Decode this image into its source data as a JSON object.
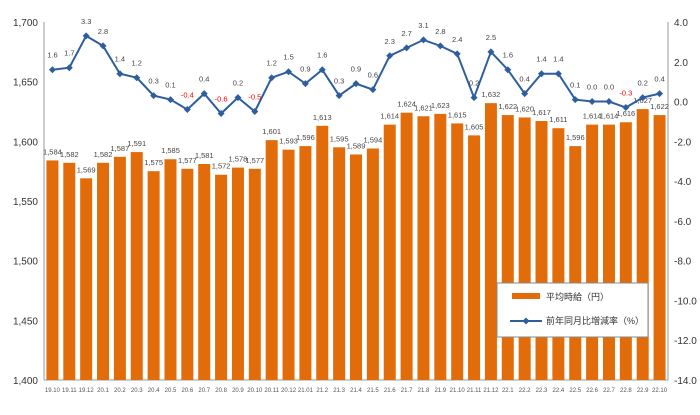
{
  "chart_data": {
    "type": "bar+line",
    "categories": [
      "19.10",
      "19.11",
      "19.12",
      "20.1",
      "20.2",
      "20.3",
      "20.4",
      "20.5",
      "20.6",
      "20.7",
      "20.8",
      "20.9",
      "20.10",
      "20.11",
      "20.12",
      "21.01",
      "21.2",
      "21.3",
      "21.4",
      "21.5",
      "21.6",
      "21.7",
      "21.8",
      "21.9",
      "21.10",
      "21.11",
      "21.12",
      "22.1",
      "22.2",
      "22.3",
      "22.4",
      "22.5",
      "22.6",
      "22.7",
      "22.8",
      "22.9",
      "22.10"
    ],
    "series": [
      {
        "name": "平均時給（円）",
        "type": "bar",
        "axis": "left",
        "color": "#E36C0A",
        "values": [
          1584,
          1582,
          1569,
          1582,
          1587,
          1591,
          1575,
          1585,
          1577,
          1581,
          1572,
          1578,
          1577,
          1601,
          1593,
          1596,
          1613,
          1595,
          1589,
          1594,
          1614,
          1624,
          1621,
          1623,
          1615,
          1605,
          1632,
          1622,
          1620,
          1617,
          1611,
          1596,
          1614,
          1614,
          1616,
          1627,
          1622
        ]
      },
      {
        "name": "前年同月比増減率（%）",
        "type": "line",
        "axis": "right",
        "color": "#2E5E9E",
        "values": [
          1.6,
          1.7,
          3.3,
          2.8,
          1.4,
          1.2,
          0.3,
          0.1,
          -0.4,
          0.4,
          -0.6,
          0.2,
          -0.5,
          1.2,
          1.5,
          0.9,
          1.6,
          0.3,
          0.9,
          0.6,
          2.3,
          2.7,
          3.1,
          2.8,
          2.4,
          0.2,
          2.5,
          1.6,
          0.4,
          1.4,
          1.4,
          0.1,
          0.0,
          0.0,
          -0.3,
          0.2,
          0.4
        ]
      }
    ],
    "left_axis": {
      "range": [
        1400,
        1700
      ],
      "ticks": [
        "1,400",
        "1,450",
        "1,500",
        "1,550",
        "1,600",
        "1,650",
        "1,700"
      ]
    },
    "right_axis": {
      "range": [
        -14,
        4
      ],
      "ticks": [
        "-14.0",
        "-12.0",
        "-10.0",
        "-8.0",
        "-6.0",
        "-4.0",
        "-2.0",
        "0.0",
        "2.0",
        "4.0"
      ]
    },
    "legend_placement": "bottom-right",
    "negative_label_color": "#FF0000"
  }
}
